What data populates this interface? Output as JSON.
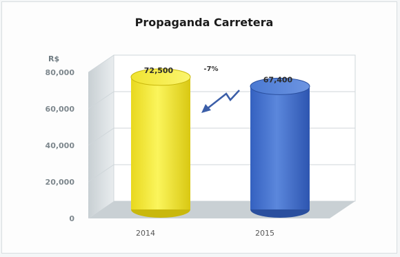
{
  "chart_data": {
    "type": "bar",
    "title": "Propaganda Carretera",
    "ylabel": "R$",
    "categories": [
      "2014",
      "2015"
    ],
    "values": [
      72500,
      67400
    ],
    "data_labels": [
      "72,500",
      "67,400"
    ],
    "y_ticks": [
      "0",
      "20,000",
      "40,000",
      "60,000",
      "80,000"
    ],
    "ylim": [
      0,
      80000
    ],
    "grid": true,
    "annotation": "-7%",
    "colors": {
      "bar_2014": "#f2ea2a",
      "bar_2015": "#3f6fc9",
      "arrow": "#3b5ea8"
    }
  }
}
